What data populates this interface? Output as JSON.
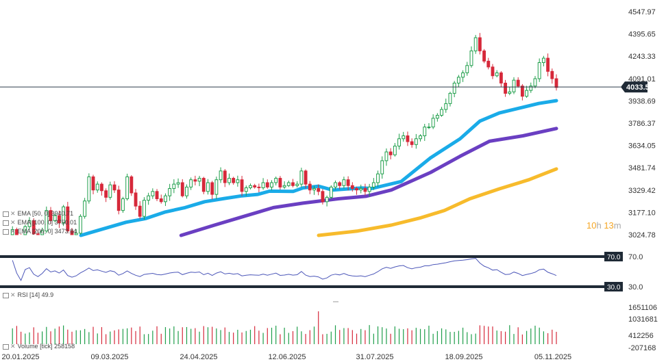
{
  "chart_data": {
    "type": "candlestick",
    "title": "",
    "price_axis": {
      "ticks": [
        "4547.97",
        "4395.65",
        "4243.33",
        "4091.01",
        "3938.69",
        "3786.37",
        "3634.05",
        "3481.74",
        "3329.42",
        "3177.10",
        "3024.78"
      ],
      "tick_values": [
        4547.97,
        4395.65,
        4243.33,
        4091.01,
        3938.69,
        3786.37,
        3634.05,
        3481.74,
        3329.42,
        3177.1,
        3024.78
      ],
      "range": [
        2980,
        4600
      ]
    },
    "last_price": {
      "label": "4033.50",
      "value": 4033.5
    },
    "x_ticks": [
      "20.01.2025",
      "09.03.2025",
      "24.04.2025",
      "12.06.2025",
      "31.07.2025",
      "18.09.2025",
      "05.11.2025"
    ],
    "close_series": [
      2990,
      3060,
      3010,
      2950,
      3080,
      3120,
      3030,
      2985,
      3050,
      3190,
      3120,
      3155,
      3105,
      3215,
      3050,
      2990,
      3035,
      3150,
      3255,
      3420,
      3330,
      3370,
      3325,
      3280,
      3365,
      3330,
      3190,
      3270,
      3420,
      3310,
      3220,
      3150,
      3260,
      3290,
      3320,
      3270,
      3250,
      3290,
      3340,
      3370,
      3380,
      3290,
      3350,
      3400,
      3390,
      3410,
      3320,
      3380,
      3300,
      3400,
      3460,
      3380,
      3410,
      3380,
      3400,
      3320,
      3345,
      3360,
      3350,
      3345,
      3380,
      3350,
      3380,
      3410,
      3350,
      3360,
      3380,
      3360,
      3370,
      3460,
      3370,
      3330,
      3340,
      3320,
      3250,
      3280,
      3350,
      3380,
      3360,
      3400,
      3360,
      3340,
      3330,
      3340,
      3320,
      3350,
      3380,
      3440,
      3530,
      3590,
      3570,
      3630,
      3680,
      3700,
      3660,
      3640,
      3680,
      3700,
      3760,
      3760,
      3820,
      3840,
      3880,
      3920,
      3990,
      4060,
      4100,
      4130,
      4180,
      4280,
      4370,
      4280,
      4210,
      4170,
      4110,
      4130,
      4060,
      3990,
      4000,
      4080,
      4040,
      3970,
      4010,
      4040,
      4090,
      4200,
      4230,
      4140,
      4090,
      4030
    ],
    "ema_50": {
      "label": "EMA [50, 0] 3940.71",
      "points": [
        [
          37,
          3020
        ],
        [
          60,
          3110
        ],
        [
          70,
          3135
        ],
        [
          80,
          3180
        ],
        [
          90,
          3210
        ],
        [
          100,
          3250
        ],
        [
          110,
          3272
        ],
        [
          119,
          3290
        ],
        [
          127,
          3300
        ],
        [
          133,
          3322
        ],
        [
          145,
          3320
        ],
        [
          150,
          3344
        ],
        [
          158,
          3356
        ],
        [
          165,
          3330
        ],
        [
          180,
          3344
        ],
        [
          185,
          3340
        ],
        [
          200,
          3388
        ],
        [
          215,
          3550
        ],
        [
          230,
          3680
        ],
        [
          240,
          3800
        ],
        [
          250,
          3856
        ],
        [
          270,
          3921
        ],
        [
          279,
          3940
        ]
      ]
    },
    "ema_100": {
      "label": "EMA [100, 0] 3750.01",
      "points": [
        [
          88,
          3020
        ],
        [
          105,
          3090
        ],
        [
          120,
          3150
        ],
        [
          135,
          3210
        ],
        [
          150,
          3240
        ],
        [
          168,
          3270
        ],
        [
          182,
          3287
        ],
        [
          195,
          3330
        ],
        [
          215,
          3450
        ],
        [
          230,
          3560
        ],
        [
          245,
          3663
        ],
        [
          262,
          3700
        ],
        [
          279,
          3750
        ]
      ]
    },
    "ema_200": {
      "label": "EMA [200, 0] 3473.84",
      "points": [
        [
          158,
          3020
        ],
        [
          178,
          3050
        ],
        [
          195,
          3090
        ],
        [
          210,
          3140
        ],
        [
          222,
          3190
        ],
        [
          235,
          3270
        ],
        [
          250,
          3338
        ],
        [
          265,
          3400
        ],
        [
          279,
          3474
        ]
      ]
    },
    "rsi": {
      "label": "RSI [14] 49.9",
      "upper": "70.0",
      "lower": "30.0",
      "upper_value": 70,
      "lower_value": 30
    },
    "volume": {
      "label": "Volume [tick] 258158",
      "ticks": [
        "1651106",
        "1031681",
        "412256",
        "-207168"
      ],
      "tick_values": [
        1651106,
        1031681,
        412256,
        -207168
      ]
    }
  },
  "countdown": {
    "h": "10",
    "h_unit": "h",
    "m": "13",
    "m_unit": "m"
  }
}
